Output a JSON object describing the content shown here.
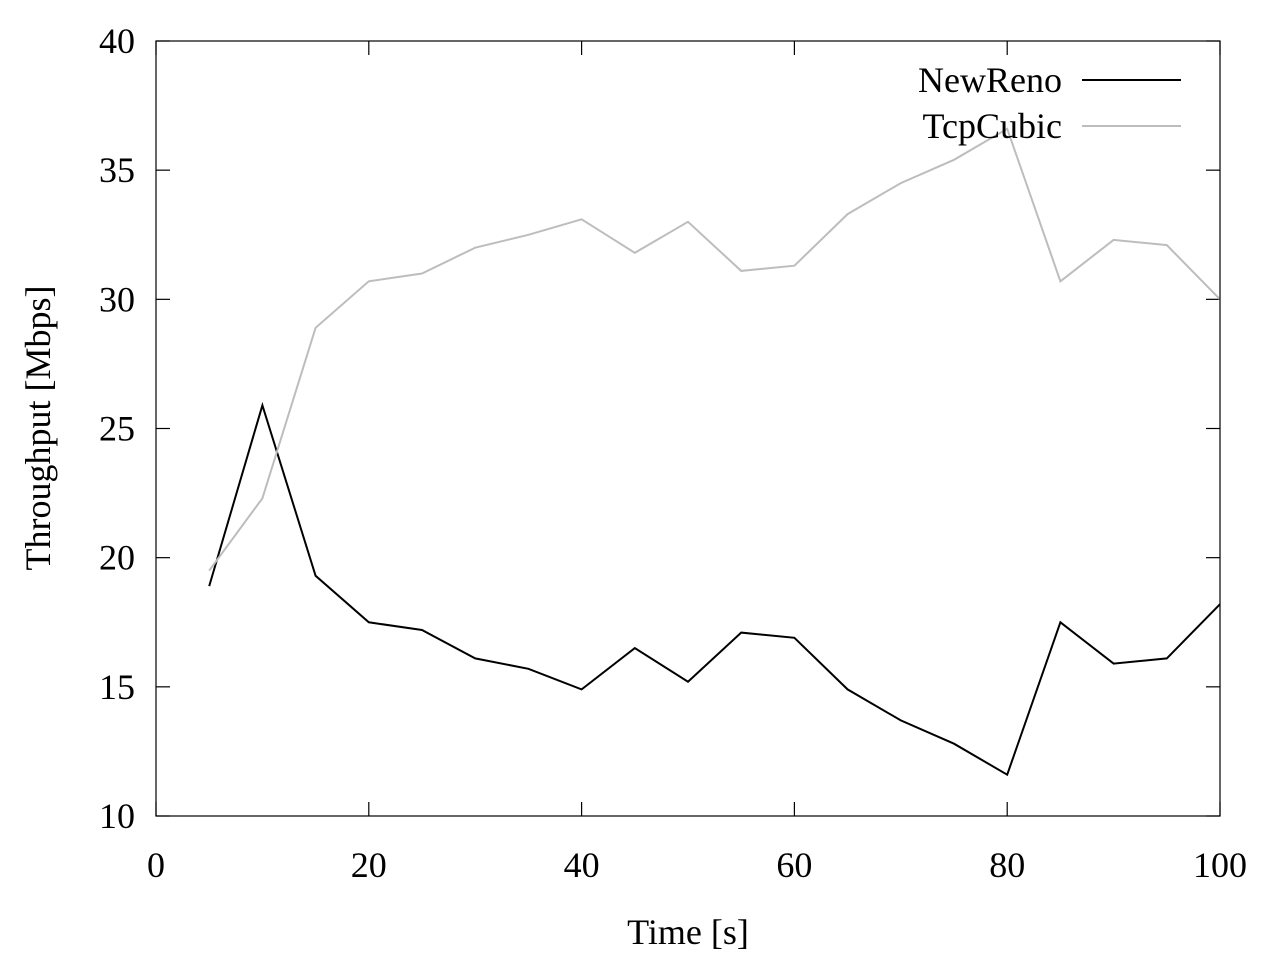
{
  "chart_data": {
    "type": "line",
    "title": "",
    "xlabel": "Time [s]",
    "ylabel": "Throughput [Mbps]",
    "xlim": [
      0,
      100
    ],
    "ylim": [
      10,
      40
    ],
    "xticks": [
      0,
      20,
      40,
      60,
      80,
      100
    ],
    "yticks": [
      10,
      15,
      20,
      25,
      30,
      35,
      40
    ],
    "grid": false,
    "legend_position": "top-right",
    "x": [
      5,
      10,
      15,
      20,
      25,
      30,
      35,
      40,
      45,
      50,
      55,
      60,
      65,
      70,
      75,
      80,
      85,
      90,
      95,
      100
    ],
    "series": [
      {
        "name": "NewReno",
        "color": "#000000",
        "values": [
          18.9,
          25.9,
          19.3,
          17.5,
          17.2,
          16.1,
          15.7,
          14.9,
          16.5,
          15.2,
          17.1,
          16.9,
          14.9,
          13.7,
          12.8,
          11.6,
          17.5,
          15.9,
          16.1,
          18.2
        ]
      },
      {
        "name": "TcpCubic",
        "color": "#bdbdbd",
        "values": [
          19.5,
          22.3,
          28.9,
          30.7,
          31.0,
          32.0,
          32.5,
          33.1,
          31.8,
          33.0,
          31.1,
          31.3,
          33.3,
          34.5,
          35.4,
          36.6,
          30.7,
          32.3,
          32.1,
          30.0
        ]
      }
    ]
  }
}
